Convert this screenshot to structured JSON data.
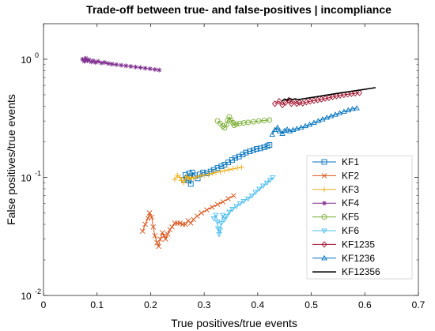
{
  "chart_data": {
    "type": "line",
    "title": "Trade-off between true- and false-positives | incompliance",
    "xlabel": "True positives/true events",
    "ylabel": "False positives/true events",
    "xlim": [
      0,
      0.7
    ],
    "ylim": [
      0.01,
      2
    ],
    "yscale": "log",
    "grid": false,
    "legend_position": "right",
    "x_ticks": [
      {
        "value": 0,
        "label": "0"
      },
      {
        "value": 0.1,
        "label": "0.1"
      },
      {
        "value": 0.2,
        "label": "0.2"
      },
      {
        "value": 0.3,
        "label": "0.3"
      },
      {
        "value": 0.4,
        "label": "0.4"
      },
      {
        "value": 0.5,
        "label": "0.5"
      },
      {
        "value": 0.6,
        "label": "0.6"
      },
      {
        "value": 0.7,
        "label": "0.7"
      }
    ],
    "y_ticks": [
      {
        "value": 0.01,
        "base": "10",
        "exp": "-2"
      },
      {
        "value": 0.1,
        "base": "10",
        "exp": "-1"
      },
      {
        "value": 1,
        "base": "10",
        "exp": "0"
      }
    ],
    "series": [
      {
        "name": "KF1",
        "color": "#0072BD",
        "marker": "square",
        "points": [
          [
            0.262,
            0.095
          ],
          [
            0.265,
            0.105
          ],
          [
            0.268,
            0.098
          ],
          [
            0.272,
            0.108
          ],
          [
            0.27,
            0.094
          ],
          [
            0.275,
            0.088
          ],
          [
            0.278,
            0.11
          ],
          [
            0.283,
            0.104
          ],
          [
            0.288,
            0.098
          ],
          [
            0.292,
            0.106
          ],
          [
            0.298,
            0.11
          ],
          [
            0.305,
            0.108
          ],
          [
            0.312,
            0.112
          ],
          [
            0.318,
            0.116
          ],
          [
            0.325,
            0.12
          ],
          [
            0.332,
            0.124
          ],
          [
            0.338,
            0.128
          ],
          [
            0.345,
            0.134
          ],
          [
            0.352,
            0.14
          ],
          [
            0.358,
            0.146
          ],
          [
            0.365,
            0.15
          ],
          [
            0.372,
            0.156
          ],
          [
            0.378,
            0.162
          ],
          [
            0.385,
            0.166
          ],
          [
            0.392,
            0.17
          ],
          [
            0.398,
            0.174
          ],
          [
            0.405,
            0.176
          ],
          [
            0.412,
            0.18
          ],
          [
            0.418,
            0.184
          ],
          [
            0.422,
            0.188
          ]
        ]
      },
      {
        "name": "KF2",
        "color": "#D95319",
        "marker": "x",
        "points": [
          [
            0.185,
            0.035
          ],
          [
            0.19,
            0.04
          ],
          [
            0.195,
            0.045
          ],
          [
            0.198,
            0.05
          ],
          [
            0.202,
            0.046
          ],
          [
            0.205,
            0.038
          ],
          [
            0.208,
            0.032
          ],
          [
            0.212,
            0.028
          ],
          [
            0.215,
            0.026
          ],
          [
            0.218,
            0.03
          ],
          [
            0.222,
            0.034
          ],
          [
            0.225,
            0.032
          ],
          [
            0.228,
            0.03
          ],
          [
            0.232,
            0.033
          ],
          [
            0.236,
            0.036
          ],
          [
            0.24,
            0.038
          ],
          [
            0.245,
            0.041
          ],
          [
            0.25,
            0.041
          ],
          [
            0.255,
            0.041
          ],
          [
            0.26,
            0.04
          ],
          [
            0.265,
            0.04
          ],
          [
            0.27,
            0.043
          ],
          [
            0.275,
            0.041
          ],
          [
            0.28,
            0.044
          ],
          [
            0.287,
            0.047
          ],
          [
            0.295,
            0.05
          ],
          [
            0.305,
            0.053
          ],
          [
            0.315,
            0.056
          ],
          [
            0.325,
            0.059
          ],
          [
            0.335,
            0.062
          ],
          [
            0.345,
            0.066
          ],
          [
            0.355,
            0.07
          ]
        ]
      },
      {
        "name": "KF3",
        "color": "#EDB120",
        "marker": "plus",
        "points": [
          [
            0.245,
            0.096
          ],
          [
            0.25,
            0.104
          ],
          [
            0.255,
            0.1
          ],
          [
            0.258,
            0.094
          ],
          [
            0.262,
            0.09
          ],
          [
            0.265,
            0.098
          ],
          [
            0.268,
            0.102
          ],
          [
            0.272,
            0.096
          ],
          [
            0.275,
            0.1
          ],
          [
            0.28,
            0.098
          ],
          [
            0.286,
            0.101
          ],
          [
            0.293,
            0.103
          ],
          [
            0.3,
            0.104
          ],
          [
            0.308,
            0.106
          ],
          [
            0.315,
            0.108
          ],
          [
            0.322,
            0.11
          ],
          [
            0.33,
            0.112
          ],
          [
            0.338,
            0.114
          ],
          [
            0.346,
            0.116
          ],
          [
            0.354,
            0.118
          ],
          [
            0.362,
            0.12
          ],
          [
            0.37,
            0.122
          ]
        ]
      },
      {
        "name": "KF4",
        "color": "#7E2F8E",
        "marker": "star",
        "points": [
          [
            0.073,
            1.0
          ],
          [
            0.076,
            0.96
          ],
          [
            0.079,
            1.02
          ],
          [
            0.082,
            0.97
          ],
          [
            0.085,
            0.99
          ],
          [
            0.089,
            0.95
          ],
          [
            0.093,
            0.97
          ],
          [
            0.097,
            0.94
          ],
          [
            0.102,
            0.96
          ],
          [
            0.108,
            0.93
          ],
          [
            0.114,
            0.94
          ],
          [
            0.121,
            0.92
          ],
          [
            0.128,
            0.91
          ],
          [
            0.136,
            0.9
          ],
          [
            0.145,
            0.89
          ],
          [
            0.154,
            0.88
          ],
          [
            0.163,
            0.87
          ],
          [
            0.172,
            0.86
          ],
          [
            0.181,
            0.85
          ],
          [
            0.19,
            0.84
          ],
          [
            0.199,
            0.83
          ],
          [
            0.208,
            0.82
          ],
          [
            0.216,
            0.81
          ]
        ]
      },
      {
        "name": "KF5",
        "color": "#77AC30",
        "marker": "circle",
        "points": [
          [
            0.325,
            0.3
          ],
          [
            0.33,
            0.286
          ],
          [
            0.335,
            0.272
          ],
          [
            0.338,
            0.262
          ],
          [
            0.342,
            0.28
          ],
          [
            0.344,
            0.305
          ],
          [
            0.347,
            0.325
          ],
          [
            0.35,
            0.305
          ],
          [
            0.354,
            0.29
          ],
          [
            0.356,
            0.276
          ],
          [
            0.36,
            0.282
          ],
          [
            0.366,
            0.286
          ],
          [
            0.374,
            0.289
          ],
          [
            0.382,
            0.292
          ],
          [
            0.392,
            0.296
          ],
          [
            0.402,
            0.3
          ],
          [
            0.412,
            0.303
          ],
          [
            0.422,
            0.306
          ]
        ]
      },
      {
        "name": "KF6",
        "color": "#4DBEEE",
        "marker": "triangle-down",
        "points": [
          [
            0.318,
            0.045
          ],
          [
            0.322,
            0.048
          ],
          [
            0.325,
            0.042
          ],
          [
            0.326,
            0.037
          ],
          [
            0.328,
            0.033
          ],
          [
            0.33,
            0.036
          ],
          [
            0.332,
            0.041
          ],
          [
            0.335,
            0.048
          ],
          [
            0.338,
            0.044
          ],
          [
            0.342,
            0.047
          ],
          [
            0.347,
            0.051
          ],
          [
            0.353,
            0.054
          ],
          [
            0.36,
            0.057
          ],
          [
            0.367,
            0.06
          ],
          [
            0.374,
            0.063
          ],
          [
            0.382,
            0.066
          ],
          [
            0.389,
            0.07
          ],
          [
            0.396,
            0.075
          ],
          [
            0.403,
            0.08
          ],
          [
            0.41,
            0.085
          ],
          [
            0.417,
            0.09
          ],
          [
            0.423,
            0.095
          ],
          [
            0.428,
            0.1
          ]
        ]
      },
      {
        "name": "KF1235",
        "color": "#A2142F",
        "marker": "diamond",
        "points": [
          [
            0.432,
            0.42
          ],
          [
            0.44,
            0.44
          ],
          [
            0.446,
            0.41
          ],
          [
            0.452,
            0.43
          ],
          [
            0.458,
            0.45
          ],
          [
            0.463,
            0.42
          ],
          [
            0.468,
            0.44
          ],
          [
            0.473,
            0.42
          ],
          [
            0.478,
            0.43
          ],
          [
            0.484,
            0.424
          ],
          [
            0.491,
            0.434
          ],
          [
            0.498,
            0.44
          ],
          [
            0.505,
            0.446
          ],
          [
            0.512,
            0.452
          ],
          [
            0.519,
            0.458
          ],
          [
            0.526,
            0.465
          ],
          [
            0.533,
            0.472
          ],
          [
            0.54,
            0.48
          ],
          [
            0.547,
            0.488
          ],
          [
            0.554,
            0.495
          ],
          [
            0.561,
            0.5
          ],
          [
            0.568,
            0.505
          ],
          [
            0.575,
            0.51
          ],
          [
            0.582,
            0.515
          ],
          [
            0.59,
            0.52
          ]
        ]
      },
      {
        "name": "KF1236",
        "color": "#0072BD",
        "marker": "triangle-up",
        "points": [
          [
            0.427,
            0.23
          ],
          [
            0.432,
            0.252
          ],
          [
            0.437,
            0.264
          ],
          [
            0.441,
            0.246
          ],
          [
            0.446,
            0.234
          ],
          [
            0.45,
            0.248
          ],
          [
            0.455,
            0.254
          ],
          [
            0.46,
            0.246
          ],
          [
            0.466,
            0.252
          ],
          [
            0.473,
            0.258
          ],
          [
            0.481,
            0.264
          ],
          [
            0.489,
            0.272
          ],
          [
            0.497,
            0.28
          ],
          [
            0.505,
            0.29
          ],
          [
            0.513,
            0.3
          ],
          [
            0.521,
            0.31
          ],
          [
            0.529,
            0.32
          ],
          [
            0.537,
            0.33
          ],
          [
            0.545,
            0.34
          ],
          [
            0.553,
            0.35
          ],
          [
            0.561,
            0.36
          ],
          [
            0.569,
            0.37
          ],
          [
            0.577,
            0.38
          ],
          [
            0.585,
            0.385
          ]
        ]
      },
      {
        "name": "KF12356",
        "color": "#000000",
        "marker": "none",
        "points": [
          [
            0.445,
            0.44
          ],
          [
            0.45,
            0.46
          ],
          [
            0.455,
            0.45
          ],
          [
            0.46,
            0.465
          ],
          [
            0.465,
            0.455
          ],
          [
            0.47,
            0.462
          ],
          [
            0.476,
            0.455
          ],
          [
            0.482,
            0.46
          ],
          [
            0.49,
            0.466
          ],
          [
            0.498,
            0.472
          ],
          [
            0.508,
            0.48
          ],
          [
            0.52,
            0.49
          ],
          [
            0.535,
            0.502
          ],
          [
            0.55,
            0.515
          ],
          [
            0.565,
            0.528
          ],
          [
            0.58,
            0.54
          ],
          [
            0.595,
            0.552
          ],
          [
            0.61,
            0.566
          ],
          [
            0.62,
            0.575
          ]
        ]
      }
    ]
  }
}
